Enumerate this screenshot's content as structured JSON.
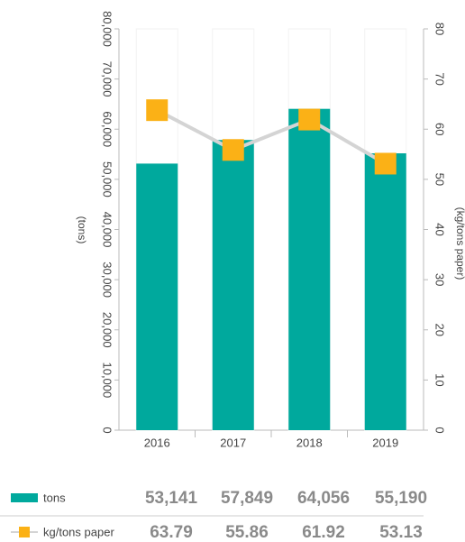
{
  "chart_data": {
    "type": "bar_line",
    "categories": [
      "2016",
      "2017",
      "2018",
      "2019"
    ],
    "y_label": "(tons)",
    "y2_label": "(kg/tons paper)",
    "series": [
      {
        "name": "tons",
        "type": "bar",
        "color": "#00a99d",
        "values": [
          53141,
          57849,
          64056,
          55190
        ],
        "value_labels": [
          "53,141",
          "57,849",
          "64,056",
          "55,190"
        ]
      },
      {
        "name": "kg/tons paper",
        "type": "line",
        "axis": "y2",
        "color": "#fbb116",
        "line_color": "#d4d4d4",
        "values": [
          63.79,
          55.86,
          61.92,
          53.13
        ]
      }
    ],
    "ylim": [
      0,
      80000
    ],
    "yticks": [
      0,
      {
        "value": 10000,
        "label": "10,000"
      },
      {
        "value": 20000,
        "label": "20,000"
      },
      {
        "value": 30000,
        "label": "30,000"
      },
      {
        "value": 40000,
        "label": "40,000"
      },
      {
        "value": 50000,
        "label": "50,000"
      },
      {
        "value": 60000,
        "label": "60,000"
      },
      {
        "value": 70000,
        "label": "70,000"
      },
      {
        "value": 80000,
        "label": "80,000"
      }
    ],
    "y2lim": [
      0,
      80
    ],
    "y2ticks": [
      0,
      10,
      20,
      30,
      40,
      50,
      60,
      70,
      80
    ]
  }
}
